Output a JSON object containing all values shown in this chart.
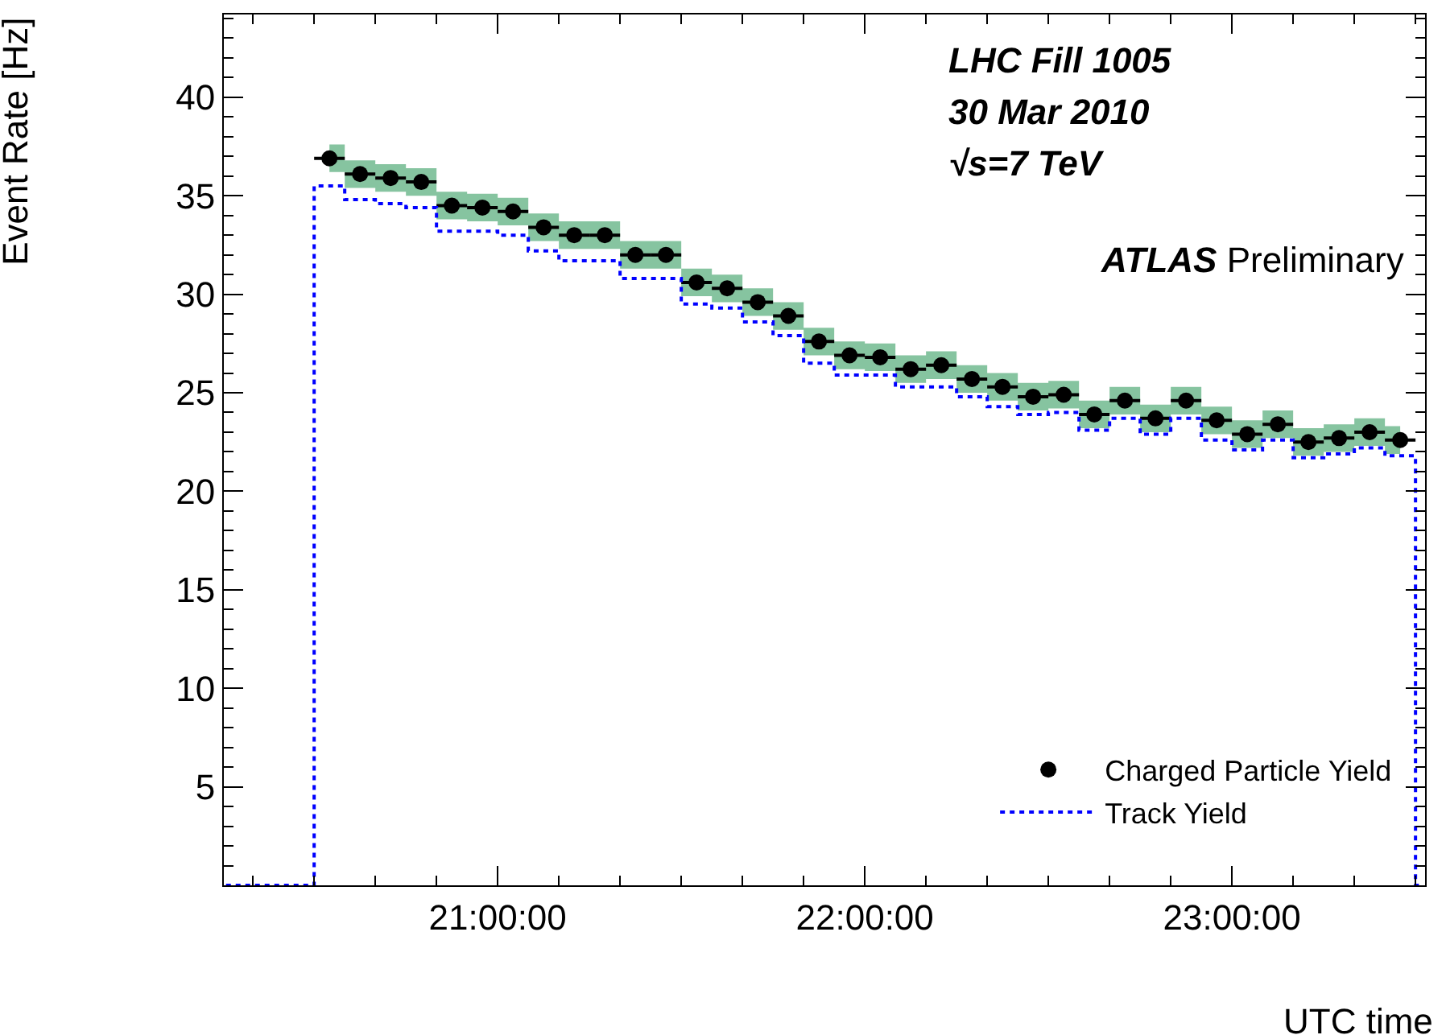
{
  "chart_data": {
    "type": "scatter",
    "xlabel": "UTC time",
    "ylabel": "Event Rate [Hz]",
    "annotations": [
      "LHC Fill 1005",
      "30 Mar 2010",
      "√s=7 TeV",
      "ATLAS Preliminary"
    ],
    "xlim": [
      20.254,
      23.526
    ],
    "xticks": [
      {
        "value": 21,
        "label": "21:00:00"
      },
      {
        "value": 22,
        "label": "22:00:00"
      },
      {
        "value": 23,
        "label": "23:00:00"
      }
    ],
    "ylim": [
      0,
      44.2
    ],
    "yticks": [
      5,
      10,
      15,
      20,
      25,
      30,
      35,
      40
    ],
    "grid": false,
    "legend": "bottom right",
    "series": [
      {
        "name": "Charged Particle Yield",
        "color": "#000000",
        "marker": "circle",
        "x": [
          20.5417,
          20.625,
          20.7083,
          20.7917,
          20.875,
          20.9583,
          21.0417,
          21.125,
          21.2083,
          21.2917,
          21.375,
          21.4583,
          21.5417,
          21.625,
          21.7083,
          21.7917,
          21.875,
          21.9583,
          22.0417,
          22.125,
          22.2083,
          22.2917,
          22.375,
          22.4583,
          22.5417,
          22.625,
          22.7083,
          22.7917,
          22.875,
          22.9583,
          23.0417,
          23.125,
          23.2083,
          23.2917,
          23.375,
          23.4583
        ],
        "values": [
          36.9,
          36.1,
          35.9,
          35.7,
          34.5,
          34.4,
          34.2,
          33.4,
          33.0,
          33.0,
          32.0,
          32.0,
          30.6,
          30.3,
          29.6,
          28.9,
          27.6,
          26.9,
          26.8,
          26.2,
          26.4,
          25.7,
          25.3,
          24.8,
          24.9,
          23.9,
          24.6,
          23.7,
          24.6,
          23.6,
          22.9,
          23.4,
          22.5,
          22.7,
          23.0,
          22.6
        ],
        "xerrors": [
          0.0417,
          0.0417,
          0.0417,
          0.0417,
          0.0417,
          0.0417,
          0.0417,
          0.0417,
          0.0417,
          0.0417,
          0.0417,
          0.0417,
          0.0417,
          0.0417,
          0.0417,
          0.0417,
          0.0417,
          0.0417,
          0.0417,
          0.0417,
          0.0417,
          0.0417,
          0.0417,
          0.0417,
          0.0417,
          0.0417,
          0.0417,
          0.0417,
          0.0417,
          0.0417,
          0.0417,
          0.0417,
          0.0417,
          0.0417,
          0.0417,
          0.0417
        ],
        "lower": [
          36.2,
          35.4,
          35.2,
          35.0,
          33.8,
          33.7,
          33.5,
          32.7,
          32.3,
          32.3,
          31.3,
          31.3,
          29.9,
          29.6,
          28.9,
          28.2,
          26.9,
          26.2,
          26.1,
          25.5,
          25.7,
          25.0,
          24.6,
          24.1,
          24.2,
          23.2,
          23.9,
          23.0,
          23.9,
          22.9,
          22.2,
          22.7,
          21.8,
          22.0,
          22.3,
          21.9
        ],
        "upper": [
          37.6,
          36.8,
          36.6,
          36.4,
          35.2,
          35.1,
          34.9,
          34.1,
          33.7,
          33.7,
          32.7,
          32.7,
          31.3,
          31.0,
          30.3,
          29.6,
          28.3,
          27.6,
          27.5,
          26.9,
          27.1,
          26.4,
          26.0,
          25.5,
          25.6,
          24.6,
          25.3,
          24.4,
          25.3,
          24.3,
          23.6,
          24.1,
          23.2,
          23.4,
          23.7,
          23.3
        ]
      },
      {
        "name": "Track Yield",
        "type": "step",
        "color": "#0000ff",
        "line_style": "dotted",
        "marker": "none",
        "x": [
          20.26,
          20.5,
          20.5833,
          20.6667,
          20.75,
          20.8333,
          20.9167,
          21,
          21.0833,
          21.1667,
          21.25,
          21.3333,
          21.4167,
          21.5,
          21.5833,
          21.6667,
          21.75,
          21.8333,
          21.9167,
          22,
          22.0833,
          22.1667,
          22.25,
          22.3333,
          22.4167,
          22.5,
          22.5833,
          22.6667,
          22.75,
          22.8333,
          22.9167,
          23,
          23.0833,
          23.1667,
          23.25,
          23.3333,
          23.4167,
          23.5,
          23.52
        ],
        "values": [
          0,
          35.5,
          34.8,
          34.6,
          34.4,
          33.2,
          33.2,
          33.0,
          32.2,
          31.7,
          31.7,
          30.8,
          30.8,
          29.5,
          29.3,
          28.6,
          27.9,
          26.5,
          25.9,
          25.9,
          25.3,
          25.3,
          24.8,
          24.3,
          23.9,
          24.0,
          23.1,
          23.7,
          22.9,
          23.7,
          22.6,
          22.1,
          22.6,
          21.7,
          21.9,
          22.2,
          21.8,
          0,
          0
        ]
      }
    ]
  }
}
